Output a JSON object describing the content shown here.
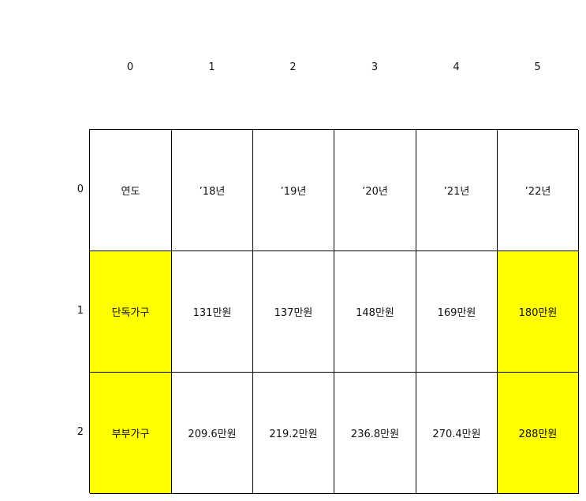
{
  "chart_data": {
    "type": "table",
    "column_index": [
      "0",
      "1",
      "2",
      "3",
      "4",
      "5"
    ],
    "row_index": [
      "0",
      "1",
      "2"
    ],
    "rows": [
      [
        "연도",
        "’18년",
        "’19년",
        "’20년",
        "’21년",
        "’22년"
      ],
      [
        "단독가구",
        "131만원",
        "137만원",
        "148만원",
        "169만원",
        "180만원"
      ],
      [
        "부부가구",
        "209.6만원",
        "219.2만원",
        "236.8만원",
        "270.4만원",
        "288만원"
      ]
    ],
    "highlighted_cells": [
      [
        1,
        0
      ],
      [
        1,
        5
      ],
      [
        2,
        0
      ],
      [
        2,
        5
      ]
    ],
    "highlight_color": "#ffff00",
    "default_cell_color": "#ffffff",
    "border_color": "#000000"
  }
}
